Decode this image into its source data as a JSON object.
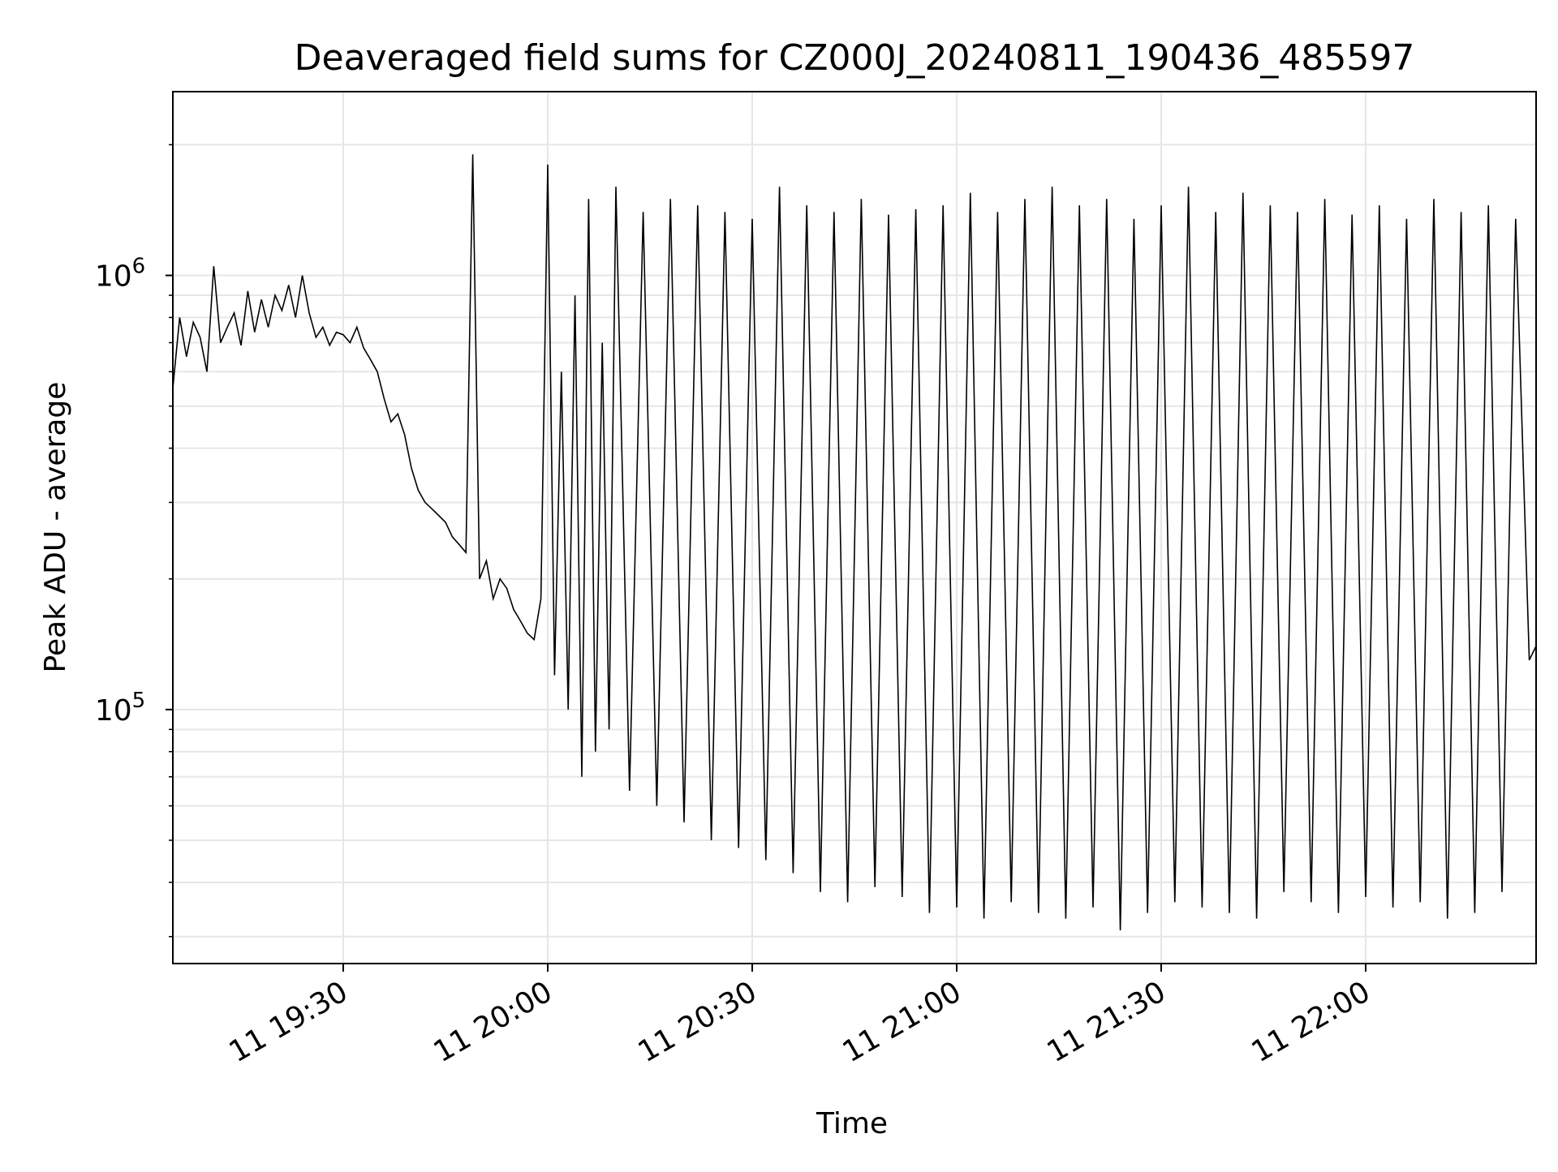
{
  "chart_data": {
    "type": "line",
    "title": "Deaveraged field sums for CZ000J_20240811_190436_485597",
    "xlabel": "Time",
    "ylabel": "Peak ADU - average",
    "yscale": "log",
    "ylim": [
      26000,
      2650000
    ],
    "xlim": [
      "2024-08-11 19:05",
      "2024-08-11 22:25"
    ],
    "grid": true,
    "x_ticks": [
      {
        "time": "2024-08-11 19:30",
        "label": "11 19:30"
      },
      {
        "time": "2024-08-11 20:00",
        "label": "11 20:00"
      },
      {
        "time": "2024-08-11 20:30",
        "label": "11 20:30"
      },
      {
        "time": "2024-08-11 21:00",
        "label": "11 21:00"
      },
      {
        "time": "2024-08-11 21:30",
        "label": "11 21:30"
      },
      {
        "time": "2024-08-11 22:00",
        "label": "11 22:00"
      }
    ],
    "y_ticks": [
      {
        "value": 100000,
        "base": "10",
        "exp": "5"
      },
      {
        "value": 1000000,
        "base": "10",
        "exp": "6"
      }
    ],
    "line_color": "#000000",
    "series": [
      {
        "points_note_free": true,
        "x": [
          "2024-08-11 19:05",
          "2024-08-11 19:06",
          "2024-08-11 19:07",
          "2024-08-11 19:08",
          "2024-08-11 19:09",
          "2024-08-11 19:10",
          "2024-08-11 19:11",
          "2024-08-11 19:12",
          "2024-08-11 19:13",
          "2024-08-11 19:14",
          "2024-08-11 19:15",
          "2024-08-11 19:16",
          "2024-08-11 19:17",
          "2024-08-11 19:18",
          "2024-08-11 19:19",
          "2024-08-11 19:20",
          "2024-08-11 19:21",
          "2024-08-11 19:22",
          "2024-08-11 19:23",
          "2024-08-11 19:24",
          "2024-08-11 19:25",
          "2024-08-11 19:26",
          "2024-08-11 19:27",
          "2024-08-11 19:28",
          "2024-08-11 19:29",
          "2024-08-11 19:30",
          "2024-08-11 19:31",
          "2024-08-11 19:32",
          "2024-08-11 19:33",
          "2024-08-11 19:34",
          "2024-08-11 19:35",
          "2024-08-11 19:36",
          "2024-08-11 19:37",
          "2024-08-11 19:38",
          "2024-08-11 19:39",
          "2024-08-11 19:40",
          "2024-08-11 19:41",
          "2024-08-11 19:42",
          "2024-08-11 19:43",
          "2024-08-11 19:44",
          "2024-08-11 19:45",
          "2024-08-11 19:46",
          "2024-08-11 19:47",
          "2024-08-11 19:48",
          "2024-08-11 19:49",
          "2024-08-11 19:50",
          "2024-08-11 19:51",
          "2024-08-11 19:52",
          "2024-08-11 19:53",
          "2024-08-11 19:54",
          "2024-08-11 19:55",
          "2024-08-11 19:56",
          "2024-08-11 19:57",
          "2024-08-11 19:58",
          "2024-08-11 19:59",
          "2024-08-11 20:00",
          "2024-08-11 20:01",
          "2024-08-11 20:02",
          "2024-08-11 20:03",
          "2024-08-11 20:04",
          "2024-08-11 20:05",
          "2024-08-11 20:06",
          "2024-08-11 20:07",
          "2024-08-11 20:08",
          "2024-08-11 20:09",
          "2024-08-11 20:10",
          "2024-08-11 20:12",
          "2024-08-11 20:14",
          "2024-08-11 20:16",
          "2024-08-11 20:18",
          "2024-08-11 20:20",
          "2024-08-11 20:22",
          "2024-08-11 20:24",
          "2024-08-11 20:26",
          "2024-08-11 20:28",
          "2024-08-11 20:30",
          "2024-08-11 20:32",
          "2024-08-11 20:34",
          "2024-08-11 20:36",
          "2024-08-11 20:38",
          "2024-08-11 20:40",
          "2024-08-11 20:42",
          "2024-08-11 20:44",
          "2024-08-11 20:46",
          "2024-08-11 20:48",
          "2024-08-11 20:50",
          "2024-08-11 20:52",
          "2024-08-11 20:54",
          "2024-08-11 20:56",
          "2024-08-11 20:58",
          "2024-08-11 21:00",
          "2024-08-11 21:02",
          "2024-08-11 21:04",
          "2024-08-11 21:06",
          "2024-08-11 21:08",
          "2024-08-11 21:10",
          "2024-08-11 21:12",
          "2024-08-11 21:14",
          "2024-08-11 21:16",
          "2024-08-11 21:18",
          "2024-08-11 21:20",
          "2024-08-11 21:22",
          "2024-08-11 21:24",
          "2024-08-11 21:26",
          "2024-08-11 21:28",
          "2024-08-11 21:30",
          "2024-08-11 21:32",
          "2024-08-11 21:34",
          "2024-08-11 21:36",
          "2024-08-11 21:38",
          "2024-08-11 21:40",
          "2024-08-11 21:42",
          "2024-08-11 21:44",
          "2024-08-11 21:46",
          "2024-08-11 21:48",
          "2024-08-11 21:50",
          "2024-08-11 21:52",
          "2024-08-11 21:54",
          "2024-08-11 21:56",
          "2024-08-11 21:58",
          "2024-08-11 22:00",
          "2024-08-11 22:02",
          "2024-08-11 22:04",
          "2024-08-11 22:06",
          "2024-08-11 22:08",
          "2024-08-11 22:10",
          "2024-08-11 22:12",
          "2024-08-11 22:14",
          "2024-08-11 22:16",
          "2024-08-11 22:18",
          "2024-08-11 22:20",
          "2024-08-11 22:22",
          "2024-08-11 22:24",
          "2024-08-11 22:25"
        ],
        "y": [
          550000,
          800000,
          650000,
          780000,
          720000,
          600000,
          1050000,
          700000,
          760000,
          820000,
          690000,
          920000,
          740000,
          880000,
          760000,
          900000,
          830000,
          950000,
          800000,
          1000000,
          820000,
          720000,
          760000,
          690000,
          740000,
          730000,
          700000,
          760000,
          680000,
          640000,
          600000,
          520000,
          460000,
          480000,
          430000,
          360000,
          320000,
          300000,
          290000,
          280000,
          270000,
          250000,
          240000,
          230000,
          1900000,
          200000,
          220000,
          180000,
          200000,
          190000,
          170000,
          160000,
          150000,
          145000,
          180000,
          1800000,
          120000,
          600000,
          100000,
          900000,
          70000,
          1500000,
          80000,
          700000,
          90000,
          1600000,
          65000,
          1400000,
          60000,
          1500000,
          55000,
          1450000,
          50000,
          1400000,
          48000,
          1350000,
          45000,
          1600000,
          42000,
          1450000,
          38000,
          1400000,
          36000,
          1500000,
          39000,
          1380000,
          37000,
          1420000,
          34000,
          1450000,
          35000,
          1550000,
          33000,
          1400000,
          36000,
          1500000,
          34000,
          1600000,
          33000,
          1450000,
          35000,
          1500000,
          31000,
          1350000,
          34000,
          1450000,
          36000,
          1600000,
          35000,
          1400000,
          34000,
          1550000,
          33000,
          1450000,
          38000,
          1400000,
          36000,
          1500000,
          34000,
          1380000,
          37000,
          1450000,
          35000,
          1350000,
          36000,
          1500000,
          33000,
          1400000,
          34000,
          1450000,
          38000,
          1350000,
          130000,
          140000
        ]
      }
    ]
  }
}
